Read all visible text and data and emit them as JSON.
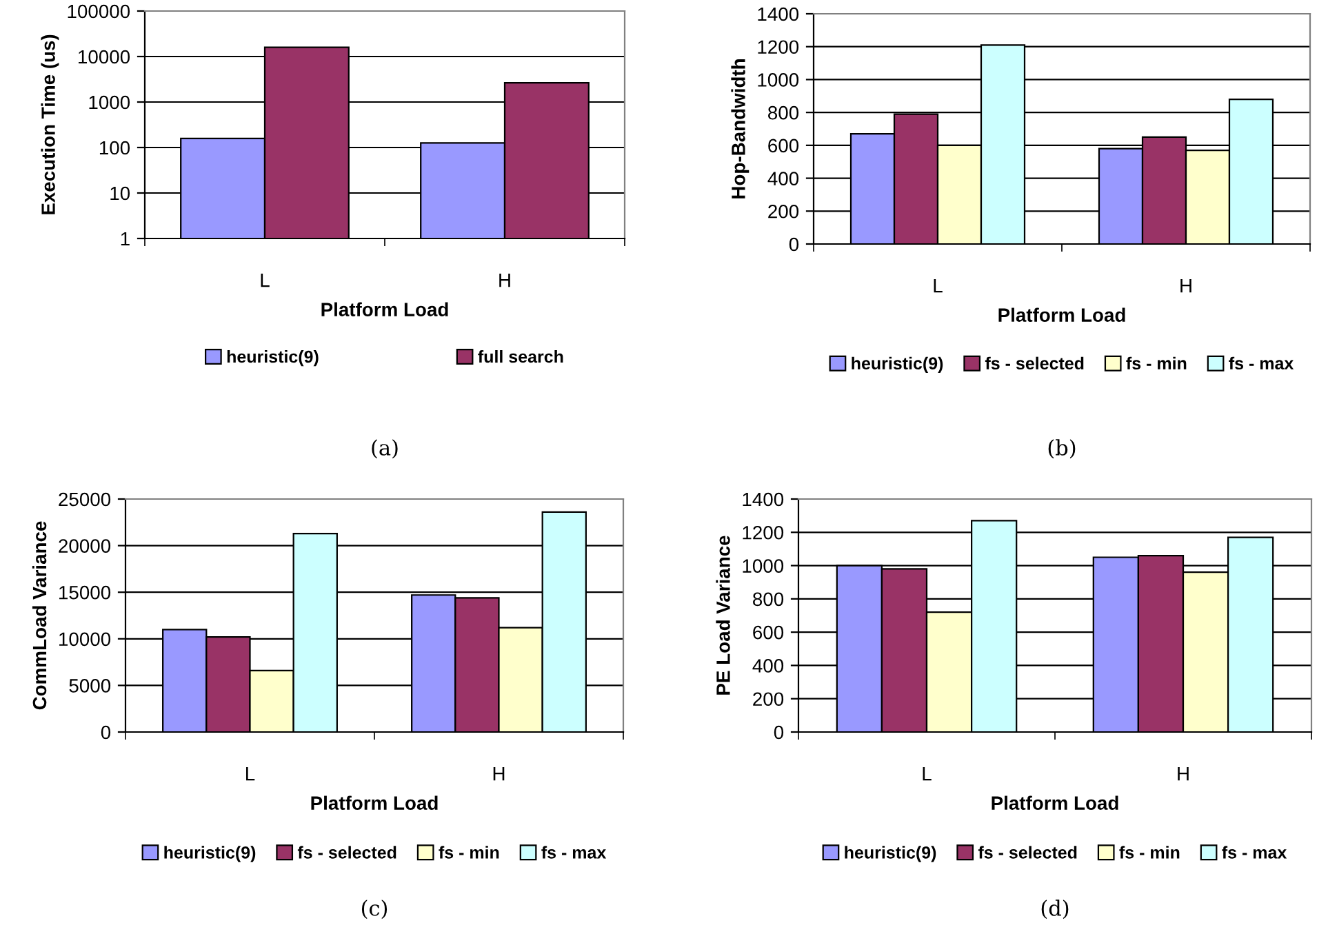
{
  "chart_data": [
    {
      "type": "bar",
      "categories": [
        "L",
        "H"
      ],
      "xlabel": "Platform Load",
      "ylabel": "Execution Time (us)",
      "log": true,
      "ylim": [
        1,
        100000
      ],
      "yticks": [
        1,
        10,
        100,
        1000,
        10000,
        100000
      ],
      "grid": "y",
      "legend": "bottom",
      "annotations": [
        "(a)"
      ],
      "series": [
        {
          "name": "heuristic(9)",
          "color": "#9999ff",
          "values": [
            158,
            126
          ]
        },
        {
          "name": "full search",
          "color": "#993366",
          "values": [
            16000,
            2650
          ]
        }
      ]
    },
    {
      "type": "bar",
      "categories": [
        "L",
        "H"
      ],
      "xlabel": "Platform Load",
      "ylabel": "Hop-Bandwidth",
      "ylim": [
        0,
        1400
      ],
      "yticks": [
        0,
        200,
        400,
        600,
        800,
        1000,
        1200,
        1400
      ],
      "grid": "y",
      "legend": "bottom",
      "annotations": [
        "(b)"
      ],
      "series": [
        {
          "name": "heuristic(9)",
          "color": "#9999ff",
          "values": [
            670,
            580
          ]
        },
        {
          "name": "fs - selected",
          "color": "#993366",
          "values": [
            790,
            650
          ]
        },
        {
          "name": "fs - min",
          "color": "#ffffcc",
          "values": [
            600,
            570
          ]
        },
        {
          "name": "fs - max",
          "color": "#ccffff",
          "values": [
            1210,
            880
          ]
        }
      ]
    },
    {
      "type": "bar",
      "categories": [
        "L",
        "H"
      ],
      "xlabel": "Platform Load",
      "ylabel": "CommLoad Variance",
      "ylim": [
        0,
        25000
      ],
      "yticks": [
        0,
        5000,
        10000,
        15000,
        20000,
        25000
      ],
      "grid": "y",
      "legend": "bottom",
      "annotations": [
        "(c)"
      ],
      "series": [
        {
          "name": "heuristic(9)",
          "color": "#9999ff",
          "values": [
            11000,
            14700
          ]
        },
        {
          "name": "fs - selected",
          "color": "#993366",
          "values": [
            10200,
            14400
          ]
        },
        {
          "name": "fs - min",
          "color": "#ffffcc",
          "values": [
            6600,
            11200
          ]
        },
        {
          "name": "fs - max",
          "color": "#ccffff",
          "values": [
            21300,
            23600
          ]
        }
      ]
    },
    {
      "type": "bar",
      "categories": [
        "L",
        "H"
      ],
      "xlabel": "Platform Load",
      "ylabel": "PE Load Variance",
      "ylim": [
        0,
        1400
      ],
      "yticks": [
        0,
        200,
        400,
        600,
        800,
        1000,
        1200,
        1400
      ],
      "grid": "y",
      "legend": "bottom",
      "annotations": [
        "(d)"
      ],
      "series": [
        {
          "name": "heuristic(9)",
          "color": "#9999ff",
          "values": [
            1000,
            1050
          ]
        },
        {
          "name": "fs - selected",
          "color": "#993366",
          "values": [
            980,
            1060
          ]
        },
        {
          "name": "fs - min",
          "color": "#ffffcc",
          "values": [
            720,
            960
          ]
        },
        {
          "name": "fs - max",
          "color": "#ccffff",
          "values": [
            1270,
            1170
          ]
        }
      ]
    }
  ]
}
